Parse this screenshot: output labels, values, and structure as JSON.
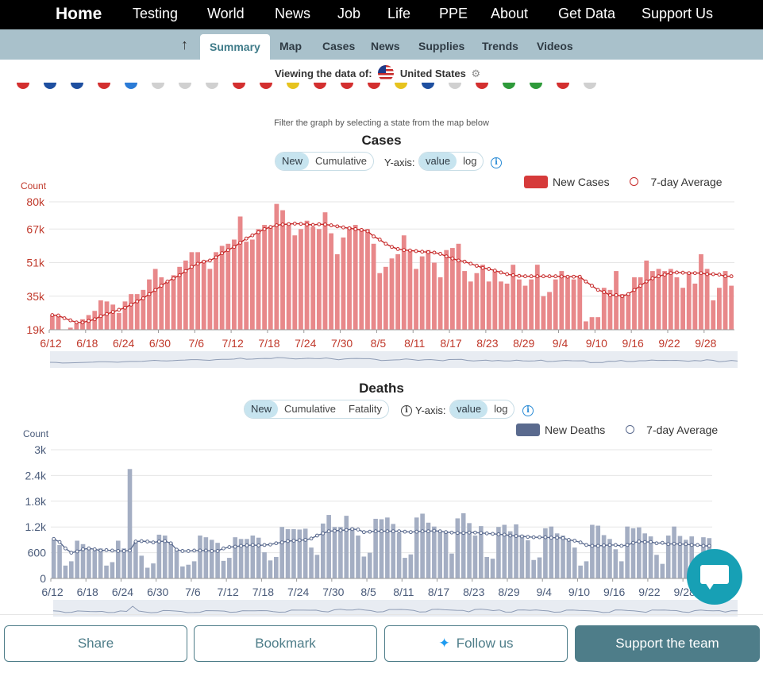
{
  "nav": {
    "items": [
      "Home",
      "Testing",
      "World",
      "News",
      "Job",
      "Life",
      "PPE",
      "About",
      "Get Data",
      "Support Us"
    ]
  },
  "subnav": {
    "tabs": [
      "Summary",
      "Map",
      "Cases",
      "News",
      "Supplies",
      "Trends",
      "Videos"
    ],
    "active": "Summary"
  },
  "viewing": {
    "label": "Viewing the data of:",
    "country": "United States"
  },
  "filter_note": "Filter the graph by selecting a state from the map below",
  "cases_panel": {
    "title": "Cases",
    "modes": [
      "New",
      "Cumulative"
    ],
    "active_mode": "New",
    "yaxis_label": "Y-axis:",
    "scales": [
      "value",
      "log"
    ],
    "active_scale": "value",
    "legend_bar": "New Cases",
    "legend_line": "7-day Average"
  },
  "deaths_panel": {
    "title": "Deaths",
    "modes": [
      "New",
      "Cumulative",
      "Fatality"
    ],
    "active_mode": "New",
    "yaxis_label": "Y-axis:",
    "scales": [
      "value",
      "log"
    ],
    "active_scale": "value",
    "legend_bar": "New Deaths",
    "legend_line": "7-day Average"
  },
  "colors": {
    "cases_bar": "#e8888a",
    "cases_line": "#c62828",
    "cases_axis": "#c0392b",
    "deaths_bar": "#a4aec3",
    "deaths_line": "#5a6a8e",
    "deaths_axis": "#4a5b7a",
    "accent": "#4e7d89"
  },
  "buttons": {
    "share": "Share",
    "bookmark": "Bookmark",
    "follow": "Follow us",
    "support": "Support the team"
  },
  "chart_data": [
    {
      "type": "bar",
      "title": "Cases",
      "ylabel": "Count",
      "ylim": [
        19000,
        80000
      ],
      "yticks": [
        "19k",
        "35k",
        "51k",
        "67k",
        "80k"
      ],
      "ytick_values": [
        19000,
        35000,
        51000,
        67000,
        80000
      ],
      "xtick_labels": [
        "6/12",
        "6/18",
        "6/24",
        "6/30",
        "7/6",
        "7/12",
        "7/18",
        "7/24",
        "7/30",
        "8/5",
        "8/11",
        "8/17",
        "8/23",
        "8/29",
        "9/4",
        "9/10",
        "9/16",
        "9/22",
        "9/28"
      ],
      "x_start": "6/12",
      "legend": "top-right",
      "grid": true,
      "series": [
        {
          "name": "New Cases",
          "kind": "bar",
          "values": [
            26000,
            25500,
            18500,
            20000,
            22000,
            24000,
            26000,
            28000,
            33000,
            32500,
            31000,
            27000,
            32500,
            36000,
            36000,
            38000,
            43000,
            48000,
            44000,
            42000,
            45000,
            49000,
            52000,
            56000,
            56000,
            52000,
            48000,
            56000,
            59000,
            60000,
            62000,
            73000,
            61000,
            62000,
            67000,
            69000,
            68000,
            79000,
            76000,
            69000,
            64000,
            67000,
            71000,
            68000,
            67000,
            75000,
            65000,
            55000,
            63000,
            68000,
            69000,
            67000,
            67000,
            60000,
            46000,
            49000,
            53000,
            55000,
            64000,
            57000,
            48000,
            54000,
            57000,
            51000,
            44000,
            57000,
            58000,
            60000,
            47000,
            42000,
            46000,
            50000,
            42000,
            47000,
            42000,
            41000,
            50000,
            43000,
            40000,
            43000,
            50000,
            35000,
            37000,
            43000,
            47000,
            44000,
            43000,
            44000,
            23000,
            25000,
            25000,
            39000,
            38000,
            47000,
            36000,
            36000,
            44000,
            44000,
            52000,
            47000,
            48000,
            47000,
            48000,
            44000,
            39000,
            46000,
            41000,
            55000,
            48000,
            33000,
            39000,
            47000,
            40000
          ]
        },
        {
          "name": "7-day Average",
          "kind": "line",
          "values": [
            26000,
            25800,
            24500,
            23500,
            22500,
            22500,
            23200,
            24000,
            25500,
            26500,
            27500,
            28500,
            29500,
            31000,
            32500,
            34000,
            36000,
            38000,
            40000,
            42000,
            43500,
            45000,
            47000,
            49000,
            50500,
            51500,
            52000,
            53500,
            55500,
            57000,
            58500,
            60500,
            62500,
            64000,
            65500,
            67000,
            68000,
            68800,
            69200,
            69400,
            69600,
            69500,
            69200,
            69000,
            69300,
            69200,
            68800,
            68300,
            67800,
            67400,
            67000,
            66600,
            66000,
            63500,
            62000,
            60000,
            58500,
            57500,
            57000,
            56800,
            56500,
            56200,
            56000,
            55800,
            55200,
            54000,
            53000,
            52000,
            51500,
            50500,
            49500,
            48500,
            48000,
            47200,
            46300,
            45500,
            45000,
            44700,
            44500,
            44500,
            44500,
            44500,
            44500,
            44500,
            44400,
            44300,
            44300,
            44300,
            42000,
            40000,
            38000,
            37000,
            35500,
            35500,
            35000,
            36000,
            38000,
            40000,
            42000,
            43500,
            44500,
            45300,
            46000,
            46300,
            46200,
            46000,
            46000,
            46000,
            45500,
            45500,
            45300,
            44500,
            44500
          ]
        }
      ]
    },
    {
      "type": "bar",
      "title": "Deaths",
      "ylabel": "Count",
      "ylim": [
        0,
        3000
      ],
      "yticks": [
        "0",
        "600",
        "1.2k",
        "1.8k",
        "2.4k",
        "3k"
      ],
      "ytick_values": [
        0,
        600,
        1200,
        1800,
        2400,
        3000
      ],
      "xtick_labels": [
        "6/12",
        "6/18",
        "6/24",
        "6/30",
        "7/6",
        "7/12",
        "7/18",
        "7/24",
        "7/30",
        "8/5",
        "8/11",
        "8/17",
        "8/23",
        "8/29",
        "9/4",
        "9/10",
        "9/16",
        "9/22",
        "9/28"
      ],
      "x_start": "6/12",
      "legend": "top-right",
      "grid": true,
      "series": [
        {
          "name": "New Deaths",
          "kind": "bar",
          "values": [
            900,
            780,
            300,
            400,
            880,
            800,
            680,
            660,
            700,
            300,
            380,
            880,
            700,
            2550,
            850,
            530,
            250,
            350,
            1020,
            1000,
            840,
            680,
            280,
            320,
            400,
            1000,
            960,
            900,
            830,
            410,
            480,
            960,
            920,
            920,
            1000,
            950,
            610,
            420,
            500,
            1200,
            1150,
            1150,
            1140,
            1160,
            720,
            550,
            1280,
            1480,
            1200,
            1200,
            1460,
            1180,
            1000,
            510,
            600,
            1390,
            1380,
            1420,
            1270,
            1060,
            480,
            560,
            1420,
            1510,
            1300,
            1210,
            1110,
            1090,
            580,
            1400,
            1520,
            1290,
            1000,
            1220,
            500,
            460,
            1200,
            1250,
            1100,
            1260,
            1010,
            890,
            430,
            490,
            1170,
            1210,
            1050,
            1000,
            890,
            720,
            300,
            400,
            1250,
            1230,
            1010,
            920,
            680,
            400,
            1210,
            1170,
            1190,
            1050,
            980,
            550,
            340,
            1000,
            1210,
            990,
            900,
            980,
            480,
            960,
            940
          ]
        },
        {
          "name": "7-day Average",
          "kind": "line",
          "values": [
            920,
            850,
            700,
            600,
            630,
            680,
            700,
            680,
            650,
            660,
            650,
            640,
            640,
            650,
            860,
            870,
            860,
            840,
            860,
            870,
            820,
            670,
            640,
            640,
            650,
            650,
            650,
            640,
            640,
            700,
            730,
            740,
            760,
            770,
            780,
            770,
            780,
            790,
            820,
            840,
            870,
            880,
            890,
            900,
            930,
            1000,
            1050,
            1100,
            1110,
            1120,
            1130,
            1150,
            1140,
            1080,
            1090,
            1100,
            1100,
            1100,
            1100,
            1100,
            1090,
            1080,
            1090,
            1100,
            1100,
            1110,
            1100,
            1080,
            1070,
            1060,
            1060,
            1070,
            1070,
            1060,
            1050,
            1040,
            1030,
            1020,
            1000,
            990,
            980,
            970,
            960,
            960,
            960,
            950,
            950,
            940,
            900,
            880,
            840,
            780,
            760,
            760,
            770,
            780,
            780,
            760,
            780,
            830,
            860,
            850,
            850,
            820,
            830,
            800,
            810,
            800,
            800,
            780,
            780,
            760,
            760
          ]
        }
      ]
    }
  ]
}
